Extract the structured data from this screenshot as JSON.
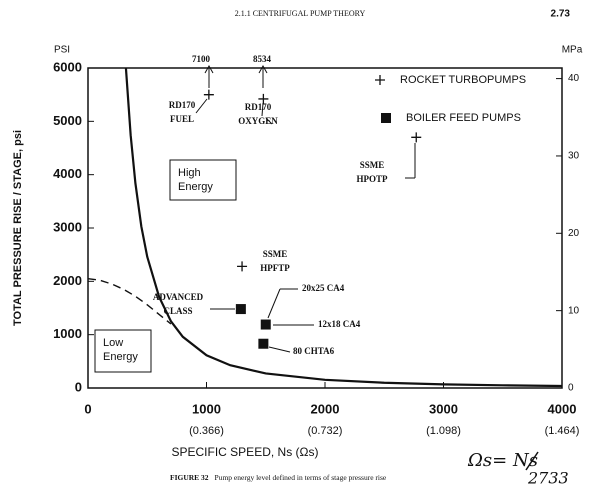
{
  "header": {
    "section": "2.1.1 CENTRIFUGAL PUMP THEORY",
    "page": "2.73"
  },
  "chart_data": {
    "type": "scatter",
    "y_unit_label": "PSI",
    "y2_unit_label": "MPa",
    "ylabel": "TOTAL PRESSURE RISE / STAGE, psi",
    "xlabel": "SPECIFIC SPEED, Ns (Ωs)",
    "xlim": [
      0,
      4000
    ],
    "xticks": [
      0,
      1000,
      2000,
      3000,
      4000
    ],
    "x2tick_labels": [
      "(0.366)",
      "(0.732)",
      "(1.098)",
      "(1.464)"
    ],
    "ylim": [
      0,
      6000
    ],
    "yticks": [
      0,
      1000,
      2000,
      3000,
      4000,
      5000,
      6000
    ],
    "y2lim": [
      0,
      41.37
    ],
    "y2ticks": [
      0,
      10,
      20,
      30,
      40
    ],
    "series": [
      {
        "name": "ROCKET TURBOPUMPS",
        "marker": "plus",
        "color": "#111111",
        "x": [
          1020,
          1480,
          2770,
          1300
        ],
        "values": [
          5500,
          5420,
          4700,
          2280
        ]
      },
      {
        "name": "BOILER FEED PUMPS",
        "marker": "square",
        "color": "#111111",
        "x": [
          1290,
          1500,
          1480
        ],
        "values": [
          1480,
          1190,
          830
        ]
      }
    ],
    "curves": [
      {
        "style": "solid",
        "x": [
          320,
          360,
          400,
          450,
          500,
          600,
          700,
          800,
          1000,
          1200,
          1500,
          2000,
          2500,
          3000,
          3500,
          4000
        ],
        "values": [
          6000,
          4740,
          3840,
          3030,
          2460,
          1710,
          1250,
          960,
          614,
          427,
          273,
          154,
          98,
          68,
          50,
          38
        ]
      },
      {
        "style": "dashed",
        "x": [
          0,
          100,
          200,
          300,
          400,
          500,
          600,
          700
        ],
        "values": [
          2050,
          2020,
          1950,
          1850,
          1720,
          1560,
          1380,
          1200
        ]
      }
    ],
    "offscale_values": [
      7100,
      8534
    ],
    "annotations": [
      {
        "lines": [
          "RD170",
          "FUEL"
        ]
      },
      {
        "lines": [
          "RD170",
          "OXYGEN"
        ]
      },
      {
        "lines": [
          "SSME",
          "HPOTP"
        ]
      },
      {
        "lines": [
          "SSME",
          "HPFTP"
        ]
      },
      {
        "lines": [
          "ADVANCED",
          "CLASS"
        ]
      },
      {
        "lines": [
          "20x25 CA4"
        ]
      },
      {
        "lines": [
          "12x18 CA4"
        ]
      },
      {
        "lines": [
          "80 CHTA6"
        ]
      }
    ],
    "regions": [
      {
        "lines": [
          "High",
          "Energy"
        ]
      },
      {
        "lines": [
          "Low",
          "Energy"
        ]
      }
    ]
  },
  "caption": {
    "label": "FIGURE 32",
    "text": "Pump energy level defined in terms of stage pressure rise"
  },
  "handwritten": [
    "Ωs= Ns",
    "2733"
  ]
}
